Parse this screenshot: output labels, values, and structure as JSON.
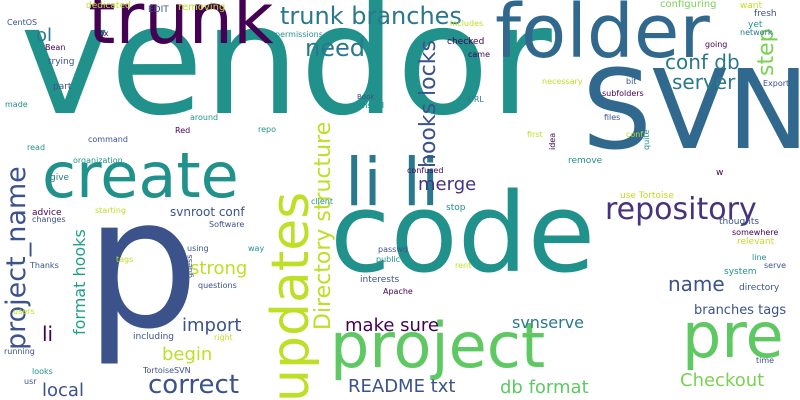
{
  "words": [
    {
      "text": "vendor",
      "color": "#21918c",
      "vertical": false
    },
    {
      "text": "p",
      "color": "#3b528b",
      "vertical": false
    },
    {
      "text": "code",
      "color": "#21918c",
      "vertical": false
    },
    {
      "text": "folder",
      "color": "#31688e",
      "vertical": false
    },
    {
      "text": "SVN",
      "color": "#31688e",
      "vertical": false
    },
    {
      "text": "trunk",
      "color": "#440154",
      "vertical": false
    },
    {
      "text": "project",
      "color": "#5ec962",
      "vertical": false
    },
    {
      "text": "updates",
      "color": "#bddf26",
      "vertical": true
    },
    {
      "text": "pre",
      "color": "#5ec962",
      "vertical": false
    },
    {
      "text": "create",
      "color": "#21918c",
      "vertical": false
    },
    {
      "text": "li li",
      "color": "#2a788e",
      "vertical": false
    },
    {
      "text": "project_name",
      "color": "#3b528b",
      "vertical": true
    },
    {
      "text": "repository",
      "color": "#46327e",
      "vertical": false
    },
    {
      "text": "trunk branches",
      "color": "#2a788e",
      "vertical": false
    },
    {
      "text": "need",
      "color": "#2a788e",
      "vertical": false
    },
    {
      "text": "hooks locks",
      "color": "#3b528b",
      "vertical": true
    },
    {
      "text": "conf db",
      "color": "#2a788e",
      "vertical": false
    },
    {
      "text": "server",
      "color": "#2a788e",
      "vertical": false
    },
    {
      "text": "step",
      "color": "#7ad151",
      "vertical": true
    },
    {
      "text": "ol",
      "color": "#2a788e",
      "vertical": false
    },
    {
      "text": "merge",
      "color": "#46327e",
      "vertical": false
    },
    {
      "text": "Directory structure",
      "color": "#bddf26",
      "vertical": true
    },
    {
      "text": "format hooks",
      "color": "#1fa187",
      "vertical": true
    },
    {
      "text": "strong",
      "color": "#bddf26",
      "vertical": false
    },
    {
      "text": "name",
      "color": "#3b528b",
      "vertical": false
    },
    {
      "text": "import",
      "color": "#3b528b",
      "vertical": false
    },
    {
      "text": "make sure",
      "color": "#440154",
      "vertical": false
    },
    {
      "text": "svnserve",
      "color": "#2a788e",
      "vertical": false
    },
    {
      "text": "begin",
      "color": "#bddf26",
      "vertical": false
    },
    {
      "text": "correct",
      "color": "#3b528b",
      "vertical": false
    },
    {
      "text": "local",
      "color": "#3b528b",
      "vertical": false
    },
    {
      "text": "README txt",
      "color": "#3b528b",
      "vertical": false
    },
    {
      "text": "db format",
      "color": "#5ec962",
      "vertical": false
    },
    {
      "text": "Checkout",
      "color": "#7ad151",
      "vertical": false
    },
    {
      "text": "li",
      "color": "#440154",
      "vertical": false
    },
    {
      "text": "branches tags",
      "color": "#3b528b",
      "vertical": false
    },
    {
      "text": "svnroot conf",
      "color": "#3b528b",
      "vertical": false
    },
    {
      "text": "removing",
      "color": "#bddf26",
      "vertical": false
    },
    {
      "text": "configuring",
      "color": "#7ad151",
      "vertical": false
    },
    {
      "text": "fresh",
      "color": "#3b528b",
      "vertical": false
    },
    {
      "text": "want",
      "color": "#bddf26",
      "vertical": false
    },
    {
      "text": "network",
      "color": "#2a788e",
      "vertical": false
    },
    {
      "text": "yet",
      "color": "#21918c",
      "vertical": false
    },
    {
      "text": "going",
      "color": "#440154",
      "vertical": false
    },
    {
      "text": "dedicated",
      "color": "#bddf26",
      "vertical": false
    },
    {
      "text": "EDIT",
      "color": "#3b528b",
      "vertical": false
    },
    {
      "text": "includes",
      "color": "#bddf26",
      "vertical": false
    },
    {
      "text": "CentOS",
      "color": "#3b528b",
      "vertical": false
    },
    {
      "text": "box",
      "color": "#440154",
      "vertical": false
    },
    {
      "text": "permissions",
      "color": "#21918c",
      "vertical": false
    },
    {
      "text": "Bean",
      "color": "#440154",
      "vertical": false
    },
    {
      "text": "trying",
      "color": "#3b528b",
      "vertical": false
    },
    {
      "text": "came",
      "color": "#440154",
      "vertical": false
    },
    {
      "text": "necessary",
      "color": "#bddf26",
      "vertical": false
    },
    {
      "text": "checked",
      "color": "#440154",
      "vertical": false
    },
    {
      "text": "bit",
      "color": "#3b528b",
      "vertical": false
    },
    {
      "text": "subfolders",
      "color": "#440154",
      "vertical": false
    },
    {
      "text": "Export",
      "color": "#3b528b",
      "vertical": false
    },
    {
      "text": "part",
      "color": "#3b528b",
      "vertical": false
    },
    {
      "text": "Book",
      "color": "#3b528b",
      "vertical": false
    },
    {
      "text": "Install",
      "color": "#21918c",
      "vertical": false
    },
    {
      "text": "URL",
      "color": "#2a788e",
      "vertical": false
    },
    {
      "text": "made",
      "color": "#21918c",
      "vertical": false
    },
    {
      "text": "around",
      "color": "#21918c",
      "vertical": false
    },
    {
      "text": "repo",
      "color": "#21918c",
      "vertical": false
    },
    {
      "text": "files",
      "color": "#3b528b",
      "vertical": false
    },
    {
      "text": "Red",
      "color": "#440154",
      "vertical": false
    },
    {
      "text": "first",
      "color": "#bddf26",
      "vertical": false
    },
    {
      "text": "conf",
      "color": "#bddf26",
      "vertical": false
    },
    {
      "text": "command",
      "color": "#3b528b",
      "vertical": false
    },
    {
      "text": "read",
      "color": "#21918c",
      "vertical": false
    },
    {
      "text": "idea",
      "color": "#440154",
      "vertical": true
    },
    {
      "text": "remove",
      "color": "#21918c",
      "vertical": false
    },
    {
      "text": "quite",
      "color": "#21918c",
      "vertical": true
    },
    {
      "text": "organization",
      "color": "#21918c",
      "vertical": false
    },
    {
      "text": "confused",
      "color": "#440154",
      "vertical": false
    },
    {
      "text": "w",
      "color": "#440154",
      "vertical": false
    },
    {
      "text": "give",
      "color": "#2a788e",
      "vertical": false
    },
    {
      "text": "use Tortoise",
      "color": "#bddf26",
      "vertical": false
    },
    {
      "text": "client",
      "color": "#21918c",
      "vertical": false
    },
    {
      "text": "stop",
      "color": "#21918c",
      "vertical": false
    },
    {
      "text": "advice",
      "color": "#440154",
      "vertical": false
    },
    {
      "text": "changes",
      "color": "#3b528b",
      "vertical": false
    },
    {
      "text": "starting",
      "color": "#bddf26",
      "vertical": false
    },
    {
      "text": "thoughts",
      "color": "#3b528b",
      "vertical": false
    },
    {
      "text": "Software",
      "color": "#3b528b",
      "vertical": false
    },
    {
      "text": "somewhere",
      "color": "#440154",
      "vertical": false
    },
    {
      "text": "relevant",
      "color": "#bddf26",
      "vertical": false
    },
    {
      "text": "tags",
      "color": "#bddf26",
      "vertical": false
    },
    {
      "text": "using",
      "color": "#3b528b",
      "vertical": false
    },
    {
      "text": "way",
      "color": "#21918c",
      "vertical": false
    },
    {
      "text": "passwd",
      "color": "#3b528b",
      "vertical": false
    },
    {
      "text": "public",
      "color": "#21918c",
      "vertical": false
    },
    {
      "text": "line",
      "color": "#21918c",
      "vertical": false
    },
    {
      "text": "serve",
      "color": "#3b528b",
      "vertical": false
    },
    {
      "text": "Thanks",
      "color": "#3b528b",
      "vertical": false
    },
    {
      "text": "rent",
      "color": "#bddf26",
      "vertical": false
    },
    {
      "text": "system",
      "color": "#21918c",
      "vertical": false
    },
    {
      "text": "directory",
      "color": "#3b528b",
      "vertical": false
    },
    {
      "text": "questions",
      "color": "#3b528b",
      "vertical": false
    },
    {
      "text": "interests",
      "color": "#3b528b",
      "vertical": false
    },
    {
      "text": "guess",
      "color": "#3b528b",
      "vertical": true
    },
    {
      "text": "users",
      "color": "#bddf26",
      "vertical": false
    },
    {
      "text": "Apache",
      "color": "#440154",
      "vertical": false
    },
    {
      "text": "including",
      "color": "#3b528b",
      "vertical": false
    },
    {
      "text": "right",
      "color": "#bddf26",
      "vertical": false
    },
    {
      "text": "running",
      "color": "#3b528b",
      "vertical": false
    },
    {
      "text": "time",
      "color": "#3b528b",
      "vertical": false
    },
    {
      "text": "TortoiseSVN",
      "color": "#3b528b",
      "vertical": false
    },
    {
      "text": "looks",
      "color": "#21918c",
      "vertical": false
    },
    {
      "text": "usr",
      "color": "#3b528b",
      "vertical": false
    }
  ]
}
